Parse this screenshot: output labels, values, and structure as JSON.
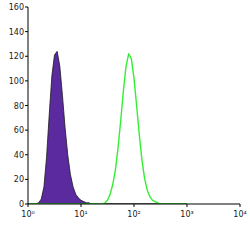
{
  "chart_data": {
    "type": "histogram",
    "log": "x",
    "xlim": [
      1,
      10000
    ],
    "xticks": [
      {
        "value": 1,
        "label": "10⁰"
      },
      {
        "value": 10,
        "label": "10¹"
      },
      {
        "value": 100,
        "label": "10²"
      },
      {
        "value": 1000,
        "label": "10³"
      },
      {
        "value": 10000,
        "label": "10⁴"
      }
    ],
    "ylim": [
      0,
      160
    ],
    "yticks": [
      0,
      20,
      40,
      60,
      80,
      100,
      120,
      140,
      160
    ],
    "grid": false,
    "x": [
      1,
      1.12,
      1.26,
      1.41,
      1.58,
      1.78,
      2,
      2.24,
      2.51,
      2.82,
      3.16,
      3.55,
      3.98,
      4.47,
      5.01,
      5.62,
      6.31,
      7.08,
      7.94,
      8.91,
      10,
      11.2,
      12.6,
      14.1,
      15.8,
      17.8,
      20,
      22.4,
      25.1,
      28.2,
      31.6,
      35.5,
      39.8,
      44.7,
      50.1,
      56.2,
      63.1,
      70.8,
      79.4,
      89.1,
      100,
      112,
      126,
      141,
      158,
      178,
      200,
      224,
      251,
      282,
      316,
      355,
      398,
      447,
      501,
      562,
      631,
      708,
      794,
      891,
      1000
    ],
    "series": [
      {
        "type": "area",
        "color": "#5b2a9e",
        "values": [
          0,
          0,
          0,
          0,
          1,
          4,
          14,
          38,
          72,
          104,
          121,
          124,
          112,
          88,
          62,
          40,
          24,
          14,
          8,
          5,
          3,
          2,
          1,
          1,
          0,
          0,
          0,
          0,
          0,
          0,
          0,
          0,
          0,
          0,
          0,
          0,
          0,
          0,
          0,
          0,
          0,
          0,
          0,
          0,
          0,
          0,
          0,
          0,
          0,
          0,
          0,
          0,
          0,
          0,
          0,
          0,
          0,
          0,
          0,
          0,
          0
        ]
      },
      {
        "type": "line",
        "color": "#33ee33",
        "values": [
          0,
          0,
          0,
          0,
          0,
          0,
          0,
          0,
          0,
          0,
          0,
          0,
          0,
          0,
          0,
          0,
          0,
          0,
          0,
          0,
          0,
          0,
          0,
          0,
          0,
          0,
          0,
          0,
          0,
          1,
          3,
          8,
          16,
          28,
          46,
          68,
          92,
          112,
          122,
          118,
          102,
          80,
          56,
          36,
          21,
          11,
          6,
          3,
          2,
          1,
          0,
          0,
          0,
          0,
          0,
          0,
          0,
          0,
          0,
          0,
          0
        ]
      }
    ]
  }
}
